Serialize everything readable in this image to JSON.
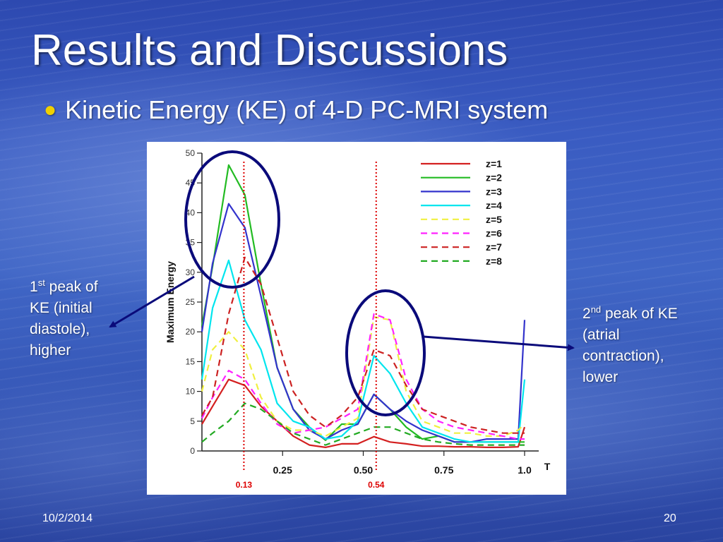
{
  "slide": {
    "title": "Results and Discussions",
    "bullet": "Kinetic Energy (KE) of 4-D PC-MRI system",
    "date": "10/2/2014",
    "page_number": "20"
  },
  "annotations": {
    "left_callout": {
      "sup": "st",
      "line1_pre": "1",
      "line1_post": " peak of",
      "line2": "KE (initial",
      "line3": "diastole),",
      "line4": "higher"
    },
    "right_callout": {
      "sup": "nd",
      "line1_pre": "2",
      "line1_post": " peak of KE",
      "line2": "(atrial",
      "line3": "contraction),",
      "line4": "lower"
    },
    "circle_color": "#0a0a7a",
    "arrow_color": "#0a0a7a"
  },
  "chart_data": {
    "type": "line",
    "ylabel": "Maximum Energy",
    "xlabel": "T",
    "ylim": [
      0,
      50
    ],
    "xlim": [
      0.0,
      1.0
    ],
    "yticks": [
      "0",
      "5",
      "10",
      "15",
      "20",
      "25",
      "30",
      "35",
      "40",
      "45",
      "50"
    ],
    "xticks": [
      {
        "value": 0.25,
        "label": "0.25"
      },
      {
        "value": 0.5,
        "label": "0.50"
      },
      {
        "value": 0.75,
        "label": "0.75"
      },
      {
        "value": 1.0,
        "label": "1.0"
      }
    ],
    "reference_lines": [
      {
        "x": 0.13,
        "label": "0.13",
        "color": "#dd0000"
      },
      {
        "x": 0.54,
        "label": "0.54",
        "color": "#dd0000"
      }
    ],
    "x": [
      0.0,
      0.033,
      0.083,
      0.133,
      0.183,
      0.233,
      0.283,
      0.333,
      0.383,
      0.433,
      0.483,
      0.533,
      0.583,
      0.633,
      0.683,
      0.733,
      0.783,
      0.833,
      0.883,
      0.933,
      0.98,
      1.0
    ],
    "series": [
      {
        "name": "z=1",
        "color": "#d42020",
        "dash": false,
        "values": [
          4.5,
          7.5,
          12,
          11,
          7.5,
          5,
          2.5,
          1,
          0.6,
          1.2,
          1.2,
          2.4,
          1.5,
          1.2,
          0.8,
          0.8,
          0.7,
          0.7,
          0.6,
          0.6,
          0.7,
          4
        ]
      },
      {
        "name": "z=2",
        "color": "#22bb22",
        "dash": false,
        "values": [
          21,
          31,
          48,
          43,
          28,
          14,
          7,
          4,
          1.8,
          4.5,
          4.5,
          9.5,
          7,
          4,
          2,
          2.5,
          1.5,
          1.5,
          1.5,
          1.5,
          1.5,
          1.5
        ]
      },
      {
        "name": "z=3",
        "color": "#3333cc",
        "dash": false,
        "values": [
          20,
          31.5,
          41.5,
          37.5,
          26,
          14,
          7,
          3.5,
          2,
          3.5,
          4.5,
          9.5,
          7,
          5,
          3.5,
          2.5,
          1.5,
          1.5,
          2,
          2,
          2,
          22
        ]
      },
      {
        "name": "z=4",
        "color": "#00e5ee",
        "dash": false,
        "values": [
          12,
          24,
          32,
          22,
          17,
          8,
          5,
          4,
          2,
          2.5,
          5,
          16,
          13,
          8,
          4,
          3,
          2,
          1.5,
          1.5,
          1.5,
          1.5,
          12
        ]
      },
      {
        "name": "z=5",
        "color": "#f0f040",
        "dash": true,
        "values": [
          10,
          17,
          20,
          17,
          9,
          5,
          3.5,
          3.5,
          2.5,
          4,
          5.5,
          22.5,
          22,
          10,
          5,
          4,
          3,
          3,
          2.5,
          2.5,
          3.5,
          4.5
        ]
      },
      {
        "name": "z=6",
        "color": "#ff22ff",
        "dash": true,
        "values": [
          5.5,
          9,
          13.5,
          12,
          8,
          4.5,
          3,
          3.5,
          4,
          5.5,
          7,
          23,
          22,
          12,
          7,
          5,
          4,
          3.5,
          3,
          2.5,
          2,
          2
        ]
      },
      {
        "name": "z=7",
        "color": "#cc2222",
        "dash": true,
        "values": [
          6,
          9,
          23,
          32.5,
          28,
          19,
          10,
          6,
          4,
          6,
          9,
          17,
          16,
          11,
          7,
          6,
          5,
          4,
          3.5,
          3,
          3,
          3
        ]
      },
      {
        "name": "z=8",
        "color": "#22aa22",
        "dash": true,
        "values": [
          1.5,
          3,
          5,
          8,
          7,
          5,
          3,
          2,
          1,
          2,
          3,
          4,
          4,
          3,
          2,
          1.5,
          1.2,
          1,
          1,
          1,
          1,
          1
        ]
      }
    ],
    "legend_position": "top-right",
    "grid": false
  }
}
